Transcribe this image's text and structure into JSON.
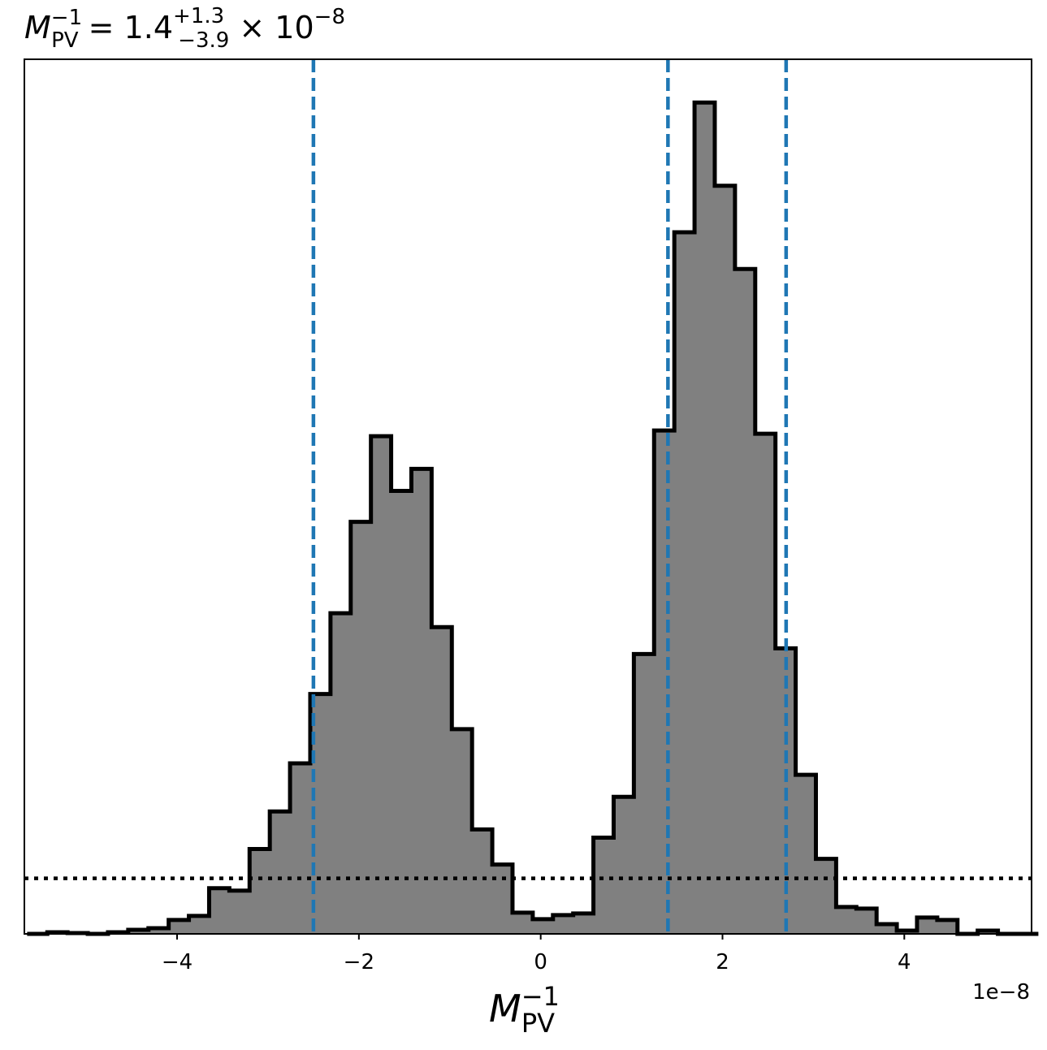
{
  "chart_data": {
    "type": "histogram",
    "title": {
      "symbol": "M",
      "sub": "PV",
      "sup": "−1",
      "value_text": " = 1.4",
      "err_plus": "+1.3",
      "err_minus": "−3.9",
      "times_text": " × 10",
      "exponent": "−8"
    },
    "xlabel": {
      "symbol": "M",
      "sub": "PV",
      "sup": "−1"
    },
    "offset_label": "1e−8",
    "xlim": [
      -5.68,
      5.4
    ],
    "ylim": [
      0,
      1.072
    ],
    "x_ticks": [
      {
        "value": -4,
        "label": "−4"
      },
      {
        "value": -2,
        "label": "−2"
      },
      {
        "value": 0,
        "label": "0"
      },
      {
        "value": 2,
        "label": "2"
      },
      {
        "value": 4,
        "label": "4"
      }
    ],
    "bin_start": -5.65,
    "bin_width": 0.2225,
    "counts": [
      0.0,
      0.002,
      0.001,
      0.0,
      0.002,
      0.005,
      0.007,
      0.017,
      0.022,
      0.056,
      0.053,
      0.104,
      0.15,
      0.209,
      0.294,
      0.393,
      0.505,
      0.61,
      0.543,
      0.57,
      0.376,
      0.251,
      0.128,
      0.085,
      0.026,
      0.018,
      0.023,
      0.025,
      0.118,
      0.168,
      0.343,
      0.617,
      0.86,
      1.019,
      0.917,
      0.815,
      0.613,
      0.35,
      0.195,
      0.092,
      0.033,
      0.031,
      0.012,
      0.004,
      0.02,
      0.017,
      0.0,
      0.004,
      0.0,
      0.0
    ],
    "quantile_lines": [
      -2.5,
      1.4,
      2.7
    ],
    "quantile_color": "#1f77b4",
    "reference_level": 0.068,
    "fill_color": "#808080",
    "edge_color": "#000000",
    "grid": false
  }
}
